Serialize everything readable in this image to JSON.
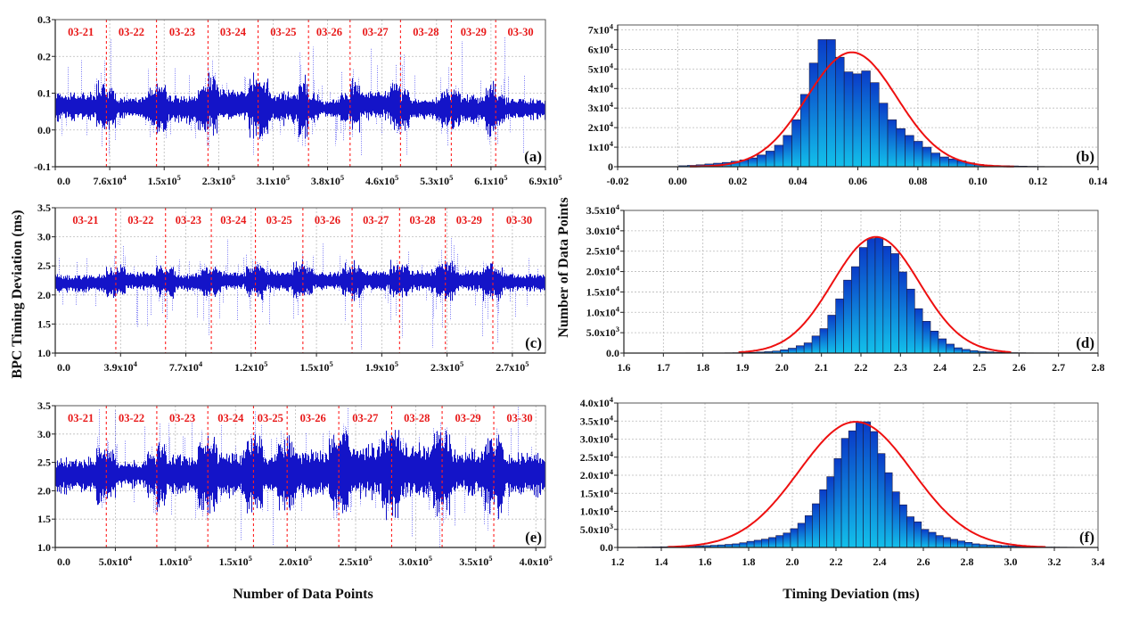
{
  "labels": {
    "y_left": "BPC Timing Deviation (ms)",
    "y_right": "Number of Data Points",
    "x_left": "Number of Data Points",
    "x_right": "Timing Deviation (ms)"
  },
  "colors": {
    "trace": "#1414c8",
    "spike": "#3a3af0",
    "divider": "#ff2020",
    "fit": "#ee1010",
    "bar_top": "#0a3cc8",
    "bar_bottom": "#12c0ea"
  },
  "chart_data": [
    {
      "id": "a",
      "type": "scatter",
      "panel_label": "(a)",
      "xlim": [
        0,
        690000
      ],
      "ylim": [
        -0.1,
        0.3
      ],
      "xticks": [
        0,
        76667,
        153333,
        230000,
        306667,
        383333,
        460000,
        536667,
        613333,
        690000
      ],
      "xtick_labels": [
        "0.0",
        "7.6x10^4",
        "1.5x10^5",
        "2.3x10^5",
        "3.1x10^5",
        "3.8x10^5",
        "4.6x10^5",
        "5.3x10^5",
        "6.1x10^5",
        "6.9x10^5"
      ],
      "yticks": [
        -0.1,
        0.0,
        0.1,
        0.2,
        0.3
      ],
      "ytick_labels": [
        "-0.1",
        "0.0",
        "0.1",
        "0.2",
        "0.3"
      ],
      "days": [
        "03-21",
        "03-22",
        "03-23",
        "03-24",
        "03-25",
        "03-26",
        "03-27",
        "03-28",
        "03-29",
        "03-30"
      ],
      "day_boundaries": [
        72000,
        142500,
        215000,
        285500,
        356500,
        415000,
        486000,
        557500,
        620000
      ],
      "band_center": [
        0.065,
        0.062,
        0.058,
        0.07,
        0.062,
        0.06,
        0.07,
        0.058,
        0.058,
        0.058
      ],
      "band_halfwidth": [
        0.025,
        0.02,
        0.025,
        0.03,
        0.03,
        0.015,
        0.025,
        0.02,
        0.025,
        0.018
      ],
      "spike_range": [
        -0.08,
        0.26
      ]
    },
    {
      "id": "c",
      "type": "scatter",
      "panel_label": "(c)",
      "xlim": [
        0,
        289000
      ],
      "ylim": [
        1.0,
        3.5
      ],
      "xticks": [
        0,
        38500,
        77000,
        115500,
        154000,
        192500,
        231000,
        269500
      ],
      "xtick_labels": [
        "0.0",
        "3.9x10^4",
        "7.7x10^4",
        "1.2x10^5",
        "1.5x10^5",
        "1.9x10^5",
        "2.3x10^5",
        "2.7x10^5"
      ],
      "yticks": [
        1.0,
        1.5,
        2.0,
        2.5,
        3.0,
        3.5
      ],
      "ytick_labels": [
        "1.0",
        "1.5",
        "2.0",
        "2.5",
        "3.0",
        "3.5"
      ],
      "days": [
        "03-21",
        "03-22",
        "03-23",
        "03-24",
        "03-25",
        "03-26",
        "03-27",
        "03-28",
        "03-29",
        "03-30"
      ],
      "day_boundaries": [
        35700,
        65000,
        92000,
        118000,
        146000,
        175000,
        203000,
        230000,
        258000
      ],
      "band_center": [
        2.2,
        2.25,
        2.22,
        2.25,
        2.25,
        2.25,
        2.25,
        2.25,
        2.25,
        2.22
      ],
      "band_halfwidth": [
        0.1,
        0.1,
        0.1,
        0.1,
        0.12,
        0.1,
        0.12,
        0.12,
        0.12,
        0.1
      ],
      "spike_range": [
        1.0,
        3.0
      ]
    },
    {
      "id": "e",
      "type": "scatter",
      "panel_label": "(e)",
      "xlim": [
        0,
        408000
      ],
      "ylim": [
        1.0,
        3.5
      ],
      "xticks": [
        0,
        50000,
        100000,
        150000,
        200000,
        250000,
        300000,
        350000,
        400000
      ],
      "xtick_labels": [
        "0.0",
        "5.0x10^4",
        "1.0x10^5",
        "1.5x10^5",
        "2.0x10^5",
        "2.5x10^5",
        "3.0x10^5",
        "3.5x10^5",
        "4.0x10^5"
      ],
      "yticks": [
        1.0,
        1.5,
        2.0,
        2.5,
        3.0,
        3.5
      ],
      "ytick_labels": [
        "1.0",
        "1.5",
        "2.0",
        "2.5",
        "3.0",
        "3.5"
      ],
      "days": [
        "03-21",
        "03-22",
        "03-23",
        "03-24",
        "03-25",
        "03-26",
        "03-27",
        "03-28",
        "03-29",
        "03-30"
      ],
      "day_boundaries": [
        42500,
        84500,
        127000,
        165000,
        193000,
        236000,
        280000,
        322000,
        365000
      ],
      "band_center": [
        2.28,
        2.3,
        2.3,
        2.3,
        2.3,
        2.32,
        2.35,
        2.35,
        2.33,
        2.3
      ],
      "band_halfwidth": [
        0.2,
        0.15,
        0.22,
        0.25,
        0.25,
        0.25,
        0.3,
        0.3,
        0.25,
        0.25
      ],
      "spike_range": [
        1.0,
        3.5
      ]
    },
    {
      "id": "b",
      "type": "bar",
      "panel_label": "(b)",
      "xlim": [
        -0.02,
        0.14
      ],
      "ylim": [
        0,
        72500
      ],
      "xticks": [
        -0.02,
        0.0,
        0.02,
        0.04,
        0.06,
        0.08,
        0.1,
        0.12,
        0.14
      ],
      "xtick_labels": [
        "-0.02",
        "0.00",
        "0.02",
        "0.04",
        "0.06",
        "0.08",
        "0.10",
        "0.12",
        "0.14"
      ],
      "yticks": [
        0,
        10000,
        20000,
        30000,
        40000,
        50000,
        60000,
        70000
      ],
      "ytick_labels": [
        "0",
        "1x10^4",
        "2x10^4",
        "3x10^4",
        "4x10^4",
        "5x10^4",
        "6x10^4",
        "7x10^4"
      ],
      "first_bin_center": 0.0018,
      "bin_width": 0.0029,
      "counts": [
        500,
        700,
        1000,
        1400,
        1800,
        2200,
        2800,
        3500,
        4500,
        6000,
        8000,
        11000,
        16000,
        24000,
        37000,
        53000,
        65000,
        65000,
        56000,
        48500,
        47500,
        49000,
        43000,
        32500,
        24000,
        19500,
        16000,
        13000,
        10000,
        7000,
        5000,
        4000,
        3000,
        2000,
        1200,
        800,
        600,
        500,
        400,
        300,
        200,
        150,
        100,
        100
      ],
      "fit": {
        "type": "gaussian",
        "amplitude": 58500,
        "mean": 0.058,
        "sigma": 0.015,
        "range": [
          0.004,
          0.112
        ]
      }
    },
    {
      "id": "d",
      "type": "bar",
      "panel_label": "(d)",
      "xlim": [
        1.6,
        2.8
      ],
      "ylim": [
        0,
        35000
      ],
      "xticks": [
        1.6,
        1.7,
        1.8,
        1.9,
        2.0,
        2.1,
        2.2,
        2.3,
        2.4,
        2.5,
        2.6,
        2.7,
        2.8
      ],
      "xtick_labels": [
        "1.6",
        "1.7",
        "1.8",
        "1.9",
        "2.0",
        "2.1",
        "2.2",
        "2.3",
        "2.4",
        "2.5",
        "2.6",
        "2.7",
        "2.8"
      ],
      "yticks": [
        0,
        5000,
        10000,
        15000,
        20000,
        25000,
        30000,
        35000
      ],
      "ytick_labels": [
        "0.0",
        "5.0x10^3",
        "1.0x10^4",
        "1.5x10^4",
        "2.0x10^4",
        "2.5x10^4",
        "3.0x10^4",
        "3.5x10^4"
      ],
      "first_bin_center": 1.766,
      "bin_width": 0.02,
      "counts": [
        50,
        50,
        50,
        50,
        50,
        70,
        90,
        120,
        180,
        250,
        350,
        500,
        800,
        1200,
        1800,
        2500,
        4200,
        6000,
        9300,
        13300,
        17900,
        21200,
        25900,
        28100,
        28300,
        26200,
        24400,
        19900,
        15700,
        10900,
        7800,
        5400,
        3500,
        2200,
        1300,
        900,
        600,
        400,
        300,
        200,
        150,
        100,
        80,
        60,
        50,
        50
      ],
      "fit": {
        "type": "gaussian",
        "amplitude": 28500,
        "mean": 2.238,
        "sigma": 0.11,
        "range": [
          1.89,
          2.58
        ]
      }
    },
    {
      "id": "f",
      "type": "bar",
      "panel_label": "(f)",
      "xlim": [
        1.2,
        3.4
      ],
      "ylim": [
        0,
        40000
      ],
      "xticks": [
        1.2,
        1.4,
        1.6,
        1.8,
        2.0,
        2.2,
        2.4,
        2.6,
        2.8,
        3.0,
        3.2,
        3.4
      ],
      "xtick_labels": [
        "1.2",
        "1.4",
        "1.6",
        "1.8",
        "2.0",
        "2.2",
        "2.4",
        "2.6",
        "2.8",
        "3.0",
        "3.2",
        "3.4"
      ],
      "yticks": [
        0,
        5000,
        10000,
        15000,
        20000,
        25000,
        30000,
        35000,
        40000
      ],
      "ytick_labels": [
        "0.0",
        "5.0x10^3",
        "1.0x10^4",
        "1.5x10^4",
        "2.0x10^4",
        "2.5x10^4",
        "3.0x10^4",
        "3.5x10^4",
        "4.0x10^4"
      ],
      "first_bin_center": 1.309,
      "bin_width": 0.0333,
      "counts": [
        100,
        120,
        150,
        180,
        220,
        300,
        350,
        400,
        450,
        500,
        600,
        700,
        850,
        1000,
        1300,
        1700,
        2000,
        2300,
        2750,
        3300,
        4000,
        5200,
        6700,
        8800,
        12100,
        16000,
        19600,
        24600,
        30200,
        32300,
        34800,
        34800,
        32100,
        26000,
        20700,
        15400,
        11800,
        8500,
        7100,
        5000,
        4200,
        3300,
        2750,
        2250,
        1800,
        1400,
        1000,
        800,
        700,
        600,
        500,
        400,
        300,
        250,
        200,
        150,
        120,
        100,
        80,
        60
      ],
      "fit": {
        "type": "gaussian",
        "amplitude": 34800,
        "mean": 2.29,
        "sigma": 0.26,
        "range": [
          1.43,
          3.16
        ]
      }
    }
  ]
}
